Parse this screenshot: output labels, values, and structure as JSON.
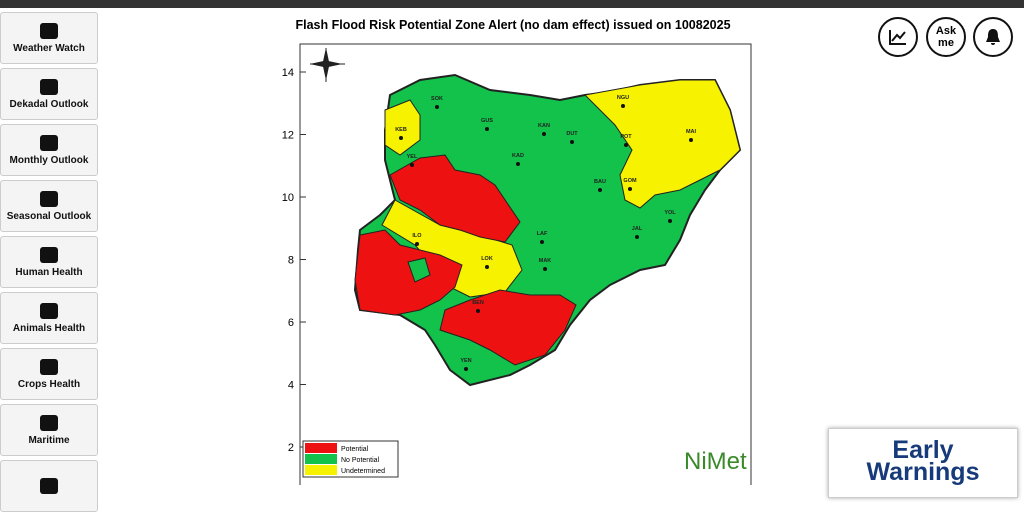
{
  "sidebar": {
    "items": [
      "Weather Watch",
      "Dekadal Outlook",
      "Monthly Outlook",
      "Seasonal Outlook",
      "Human Health",
      "Animals Health",
      "Crops Health",
      "Maritime"
    ]
  },
  "map": {
    "title": "Flash Flood Risk Potential Zone Alert (no dam effect) issued on 10082025",
    "yticks": [
      14,
      12,
      10,
      8,
      6,
      4,
      2
    ],
    "legend": [
      "Potential",
      "No Potential",
      "Undetermined"
    ],
    "state_labels": [
      "SOK",
      "KEB",
      "GUS",
      "KAN",
      "DUT",
      "NGU",
      "POT",
      "MAI",
      "GOM",
      "YOL",
      "JAL",
      "LAF",
      "ILO",
      "LOK",
      "MAK",
      "BEN",
      "YEN",
      "YEL",
      "KAD",
      "BAU"
    ],
    "logo": "NiMet"
  },
  "toolbar": {
    "ask": "Ask me"
  },
  "banner": {
    "line1": "Early",
    "line2": "Warnings"
  }
}
